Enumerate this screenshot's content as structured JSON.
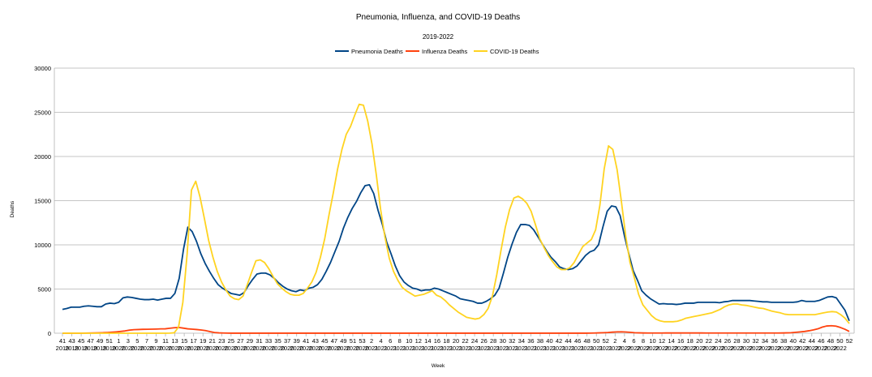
{
  "chart_data": {
    "type": "line",
    "title": "Pneumonia, Influenza, and COVID-19 Deaths",
    "subtitle": "2019-2022",
    "xlabel": "Week",
    "ylabel": "Deaths",
    "ylim": [
      0,
      30000
    ],
    "yticks": [
      0,
      5000,
      10000,
      15000,
      20000,
      25000,
      30000
    ],
    "grid": true,
    "legend_position": "top-center",
    "x_tick_weeks": [
      "41",
      "43",
      "45",
      "47",
      "49",
      "51",
      "1",
      "3",
      "5",
      "7",
      "9",
      "11",
      "13",
      "15",
      "17",
      "19",
      "21",
      "23",
      "25",
      "27",
      "29",
      "31",
      "33",
      "35",
      "37",
      "39",
      "41",
      "43",
      "45",
      "47",
      "49",
      "51",
      "53",
      "2",
      "4",
      "6",
      "8",
      "10",
      "12",
      "14",
      "16",
      "18",
      "20",
      "22",
      "24",
      "26",
      "28",
      "30",
      "32",
      "34",
      "36",
      "38",
      "40",
      "42",
      "44",
      "46",
      "48",
      "50",
      "52",
      "2",
      "4",
      "6",
      "8",
      "10",
      "12",
      "14",
      "16",
      "18",
      "20",
      "22",
      "24",
      "26",
      "28",
      "30",
      "32",
      "34",
      "36",
      "38",
      "40",
      "42",
      "44",
      "46",
      "48",
      "50",
      "52"
    ],
    "x_tick_years": [
      "2019",
      "2019",
      "2019",
      "2019",
      "2019",
      "2019",
      "2020",
      "2020",
      "2020",
      "2020",
      "2020",
      "2020",
      "2020",
      "2020",
      "2020",
      "2020",
      "2020",
      "2020",
      "2020",
      "2020",
      "2020",
      "2020",
      "2020",
      "2020",
      "2020",
      "2020",
      "2020",
      "2020",
      "2020",
      "2020",
      "2020",
      "2020",
      "2020",
      "2021",
      "2021",
      "2021",
      "2021",
      "2021",
      "2021",
      "2021",
      "2021",
      "2021",
      "2021",
      "2021",
      "2021",
      "2021",
      "2021",
      "2021",
      "2021",
      "2021",
      "2021",
      "2021",
      "2021",
      "2021",
      "2021",
      "2021",
      "2021",
      "2021",
      "2021",
      "2022",
      "2022",
      "2022",
      "2022",
      "2022",
      "2022",
      "2022",
      "2022",
      "2022",
      "2022",
      "2022",
      "2022",
      "2022",
      "2022",
      "2022",
      "2022",
      "2022",
      "2022",
      "2022",
      "2022",
      "2022",
      "2022",
      "2022",
      "2022",
      "2022",
      ""
    ],
    "series": [
      {
        "name": "Pneumonia Deaths",
        "color": "#004586",
        "values": [
          2700,
          2800,
          2950,
          2950,
          2950,
          3050,
          3100,
          3050,
          3000,
          3000,
          3300,
          3400,
          3350,
          3500,
          4000,
          4100,
          4050,
          3950,
          3850,
          3800,
          3800,
          3850,
          3750,
          3850,
          3950,
          3950,
          4500,
          6200,
          9500,
          12000,
          11500,
          10400,
          9000,
          7900,
          7000,
          6200,
          5500,
          5100,
          4800,
          4500,
          4400,
          4300,
          4600,
          5400,
          6100,
          6700,
          6800,
          6800,
          6600,
          6200,
          5700,
          5300,
          5000,
          4800,
          4700,
          4900,
          4800,
          5100,
          5200,
          5500,
          6100,
          7000,
          8000,
          9200,
          10400,
          11900,
          13100,
          14100,
          14900,
          15900,
          16700,
          16800,
          15800,
          13900,
          12300,
          10300,
          9000,
          7600,
          6500,
          5800,
          5400,
          5100,
          5000,
          4800,
          4900,
          4900,
          5100,
          5000,
          4800,
          4600,
          4400,
          4200,
          3900,
          3800,
          3700,
          3600,
          3400,
          3400,
          3600,
          3900,
          4300,
          5100,
          6800,
          8600,
          10100,
          11400,
          12300,
          12300,
          12200,
          11700,
          10900,
          10100,
          9300,
          8600,
          8100,
          7500,
          7300,
          7200,
          7300,
          7600,
          8200,
          8800,
          9200,
          9400,
          10000,
          12000,
          13800,
          14400,
          14300,
          13300,
          11000,
          9000,
          7100,
          6000,
          4800,
          4300,
          3900,
          3600,
          3300,
          3350,
          3300,
          3300,
          3250,
          3300,
          3400,
          3400,
          3400,
          3500,
          3500,
          3500,
          3500,
          3500,
          3450,
          3550,
          3600,
          3700,
          3700,
          3700,
          3700,
          3700,
          3650,
          3600,
          3550,
          3550,
          3500,
          3500,
          3500,
          3500,
          3500,
          3500,
          3550,
          3700,
          3600,
          3600,
          3600,
          3700,
          3900,
          4100,
          4150,
          4000,
          3300,
          2600,
          1400
        ]
      },
      {
        "name": "Influenza Deaths",
        "color": "#ff420e",
        "values": [
          0,
          0,
          0,
          0,
          0,
          10,
          20,
          30,
          40,
          60,
          80,
          110,
          150,
          200,
          260,
          350,
          400,
          420,
          440,
          450,
          460,
          470,
          490,
          500,
          560,
          620,
          650,
          580,
          500,
          460,
          420,
          370,
          300,
          180,
          80,
          40,
          20,
          10,
          5,
          5,
          5,
          5,
          5,
          5,
          5,
          5,
          5,
          5,
          5,
          5,
          5,
          5,
          5,
          5,
          5,
          5,
          5,
          5,
          5,
          5,
          5,
          5,
          5,
          5,
          5,
          5,
          5,
          5,
          5,
          5,
          5,
          5,
          5,
          5,
          5,
          5,
          5,
          5,
          5,
          5,
          5,
          5,
          5,
          5,
          5,
          5,
          5,
          5,
          5,
          5,
          5,
          5,
          5,
          5,
          5,
          5,
          5,
          5,
          5,
          5,
          5,
          5,
          5,
          5,
          5,
          5,
          5,
          5,
          5,
          5,
          5,
          5,
          5,
          5,
          5,
          5,
          5,
          5,
          10,
          20,
          40,
          60,
          80,
          120,
          150,
          160,
          140,
          100,
          60,
          40,
          30,
          20,
          20,
          20,
          20,
          30,
          30,
          30,
          30,
          30,
          30,
          30,
          30,
          30,
          20,
          20,
          20,
          20,
          20,
          20,
          20,
          20,
          20,
          20,
          20,
          20,
          20,
          20,
          20,
          20,
          20,
          30,
          40,
          60,
          100,
          150,
          200,
          280,
          380,
          500,
          700,
          820,
          850,
          800,
          650,
          450,
          200
        ]
      },
      {
        "name": "COVID-19 Deaths",
        "color": "#ffd320",
        "values": [
          0,
          0,
          0,
          0,
          0,
          0,
          0,
          0,
          0,
          0,
          0,
          0,
          0,
          0,
          0,
          0,
          0,
          0,
          0,
          0,
          0,
          0,
          0,
          0,
          0,
          10,
          50,
          700,
          3500,
          9000,
          16200,
          17200,
          15400,
          13000,
          10500,
          8600,
          7000,
          5800,
          4900,
          4200,
          3900,
          3800,
          4200,
          5500,
          6900,
          8200,
          8300,
          8000,
          7300,
          6400,
          5600,
          5100,
          4700,
          4400,
          4300,
          4300,
          4500,
          5100,
          5800,
          6900,
          8600,
          10700,
          13400,
          15900,
          18600,
          20800,
          22500,
          23400,
          24700,
          25900,
          25800,
          24000,
          21400,
          17900,
          14000,
          10900,
          8500,
          7000,
          6000,
          5200,
          4800,
          4500,
          4200,
          4300,
          4400,
          4600,
          4800,
          4300,
          4100,
          3700,
          3200,
          2800,
          2400,
          2100,
          1800,
          1700,
          1600,
          1700,
          2100,
          2800,
          4200,
          6600,
          9400,
          12000,
          14000,
          15300,
          15500,
          15200,
          14700,
          13800,
          12300,
          10700,
          9700,
          8800,
          8100,
          7500,
          7200,
          7200,
          7400,
          8000,
          8900,
          9800,
          10200,
          10600,
          11700,
          14500,
          18600,
          21200,
          20800,
          18500,
          14900,
          11000,
          8000,
          6300,
          4400,
          3200,
          2600,
          2000,
          1600,
          1400,
          1300,
          1300,
          1300,
          1350,
          1500,
          1700,
          1800,
          1900,
          2000,
          2100,
          2200,
          2300,
          2500,
          2700,
          3000,
          3200,
          3300,
          3300,
          3200,
          3150,
          3050,
          2950,
          2850,
          2800,
          2650,
          2500,
          2400,
          2300,
          2150,
          2100,
          2100,
          2100,
          2100,
          2100,
          2100,
          2100,
          2200,
          2300,
          2400,
          2450,
          2400,
          2100,
          1700,
          1100
        ]
      }
    ]
  }
}
